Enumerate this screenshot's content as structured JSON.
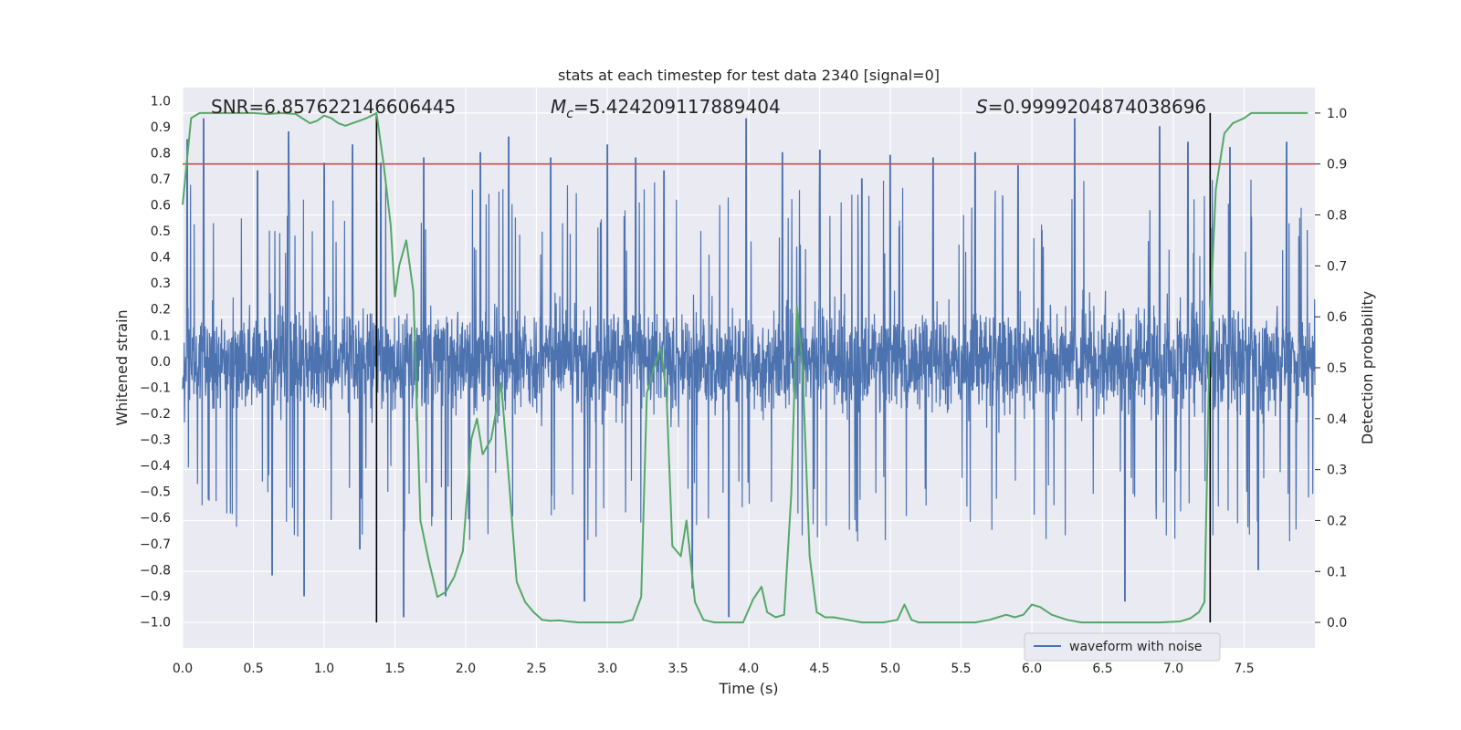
{
  "chart_data": {
    "type": "line",
    "title": "stats at each timestep for test data 2340 [signal=0]",
    "xlabel": "Time (s)",
    "ylabel": "Whitened strain",
    "y2label": "Detection probability",
    "xlim": [
      0.0,
      8.0
    ],
    "ylim": [
      -1.1,
      1.05
    ],
    "y2lim": [
      -0.05,
      1.05
    ],
    "xticks": [
      0.0,
      0.5,
      1.0,
      1.5,
      2.0,
      2.5,
      3.0,
      3.5,
      4.0,
      4.5,
      5.0,
      5.5,
      6.0,
      6.5,
      7.0,
      7.5
    ],
    "yticks": [
      1.0,
      0.9,
      0.8,
      0.7,
      0.6,
      0.5,
      0.4,
      0.3,
      0.2,
      0.1,
      0.0,
      -0.1,
      -0.2,
      -0.3,
      -0.4,
      -0.5,
      -0.6,
      -0.7,
      -0.8,
      -0.9,
      -1.0
    ],
    "y2ticks": [
      1.0,
      0.9,
      0.8,
      0.7,
      0.6,
      0.5,
      0.4,
      0.3,
      0.2,
      0.1,
      0.0
    ],
    "annotations": {
      "snr": "SNR=6.857622146606445",
      "mc_prefix": "M",
      "mc_sub": "c",
      "mc_value": "=5.424209117889404",
      "s_prefix": "S",
      "s_value": "=0.9999204874038696"
    },
    "threshold": {
      "axis": "y2",
      "value": 0.9,
      "color": "#c44e52"
    },
    "markers_x": [
      1.37,
      7.26
    ],
    "legend": {
      "label": "waveform with noise",
      "position": "lower-right"
    },
    "colors": {
      "waveform": "#4c72b0",
      "probability": "#55a868",
      "threshold": "#c44e52",
      "marker": "#000000",
      "plot_bg": "#eaeaf2",
      "grid": "#ffffff"
    },
    "series": [
      {
        "name": "Detection probability",
        "axis": "y2",
        "x": [
          0.0,
          0.06,
          0.12,
          0.2,
          0.3,
          0.4,
          0.5,
          0.6,
          0.7,
          0.8,
          0.9,
          0.95,
          1.0,
          1.05,
          1.1,
          1.15,
          1.2,
          1.25,
          1.3,
          1.37,
          1.42,
          1.47,
          1.5,
          1.53,
          1.58,
          1.63,
          1.68,
          1.74,
          1.8,
          1.86,
          1.92,
          1.98,
          2.04,
          2.08,
          2.12,
          2.18,
          2.25,
          2.3,
          2.36,
          2.42,
          2.48,
          2.54,
          2.6,
          2.66,
          2.72,
          2.8,
          2.9,
          3.0,
          3.1,
          3.18,
          3.24,
          3.28,
          3.33,
          3.38,
          3.42,
          3.46,
          3.52,
          3.56,
          3.62,
          3.68,
          3.76,
          3.86,
          3.96,
          4.03,
          4.09,
          4.13,
          4.19,
          4.25,
          4.3,
          4.34,
          4.38,
          4.43,
          4.48,
          4.54,
          4.6,
          4.7,
          4.8,
          4.95,
          5.05,
          5.1,
          5.15,
          5.2,
          5.3,
          5.4,
          5.5,
          5.6,
          5.7,
          5.76,
          5.82,
          5.88,
          5.94,
          6.0,
          6.06,
          6.14,
          6.25,
          6.35,
          6.5,
          6.7,
          6.9,
          7.05,
          7.12,
          7.18,
          7.22,
          7.26,
          7.3,
          7.36,
          7.42,
          7.5,
          7.55,
          7.6,
          7.8,
          7.95
        ],
        "values": [
          0.82,
          0.99,
          1.0,
          1.0,
          1.0,
          1.0,
          1.0,
          0.998,
          1.0,
          0.998,
          0.98,
          0.985,
          0.995,
          0.99,
          0.98,
          0.975,
          0.98,
          0.985,
          0.99,
          1.0,
          0.9,
          0.78,
          0.64,
          0.7,
          0.75,
          0.65,
          0.2,
          0.12,
          0.05,
          0.06,
          0.09,
          0.14,
          0.36,
          0.4,
          0.33,
          0.36,
          0.47,
          0.3,
          0.08,
          0.04,
          0.02,
          0.005,
          0.003,
          0.004,
          0.002,
          0.0,
          0.0,
          0.0,
          0.0,
          0.005,
          0.05,
          0.45,
          0.5,
          0.54,
          0.44,
          0.15,
          0.13,
          0.2,
          0.04,
          0.005,
          0.0,
          0.0,
          0.0,
          0.045,
          0.07,
          0.02,
          0.01,
          0.015,
          0.25,
          0.62,
          0.5,
          0.13,
          0.02,
          0.01,
          0.01,
          0.005,
          0.0,
          0.0,
          0.005,
          0.035,
          0.005,
          0.0,
          0.0,
          0.0,
          0.0,
          0.0,
          0.005,
          0.01,
          0.015,
          0.01,
          0.015,
          0.035,
          0.03,
          0.015,
          0.005,
          0.0,
          0.0,
          0.0,
          0.0,
          0.002,
          0.008,
          0.02,
          0.04,
          0.6,
          0.85,
          0.96,
          0.98,
          0.99,
          1.0,
          1.0,
          1.0,
          1.0
        ]
      },
      {
        "name": "waveform with noise",
        "axis": "y",
        "note": "dense noise trace; body approximately ±0.38 with peaks to +0.95 and -0.98",
        "x": [
          0.03,
          0.15,
          0.53,
          0.63,
          0.75,
          0.86,
          1.0,
          1.2,
          1.25,
          1.4,
          1.56,
          1.7,
          1.86,
          2.1,
          2.3,
          2.6,
          2.84,
          3.0,
          3.2,
          3.4,
          3.6,
          3.86,
          3.98,
          4.24,
          4.5,
          4.8,
          5.0,
          5.3,
          5.6,
          5.9,
          6.3,
          6.66,
          6.9,
          7.1,
          7.4,
          7.6,
          7.8
        ],
        "values": [
          0.85,
          0.93,
          0.73,
          -0.82,
          0.88,
          -0.9,
          0.76,
          0.83,
          -0.72,
          0.76,
          -0.98,
          0.78,
          -0.9,
          0.8,
          0.86,
          0.78,
          -0.92,
          0.83,
          0.78,
          0.73,
          -0.87,
          -0.98,
          0.93,
          0.8,
          0.81,
          0.7,
          0.79,
          0.78,
          0.8,
          0.75,
          0.93,
          -0.92,
          0.9,
          0.84,
          0.82,
          -0.8,
          0.84
        ]
      }
    ]
  }
}
